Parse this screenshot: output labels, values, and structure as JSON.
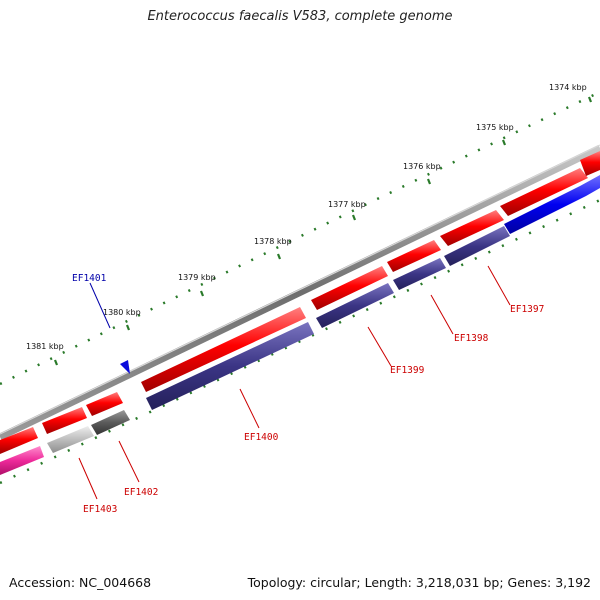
{
  "title": "Enterococcus faecalis V583, complete genome",
  "footer": {
    "accession": "Accession: NC_004668",
    "summary": "Topology: circular; Length: 3,218,031 bp; Genes: 3,192"
  },
  "colors": {
    "tick": "#2a7a2a",
    "backbone": "#7a7a7a",
    "forward_gene": "#e00000",
    "reverse_gene": "#3b3585",
    "highlight_gene": "#0b0bdc",
    "pink_gene": "#ee2a9a",
    "label_red": "#cc0000",
    "label_blue": "#0000aa"
  },
  "kbp_labels": [
    "1374 kbp",
    "1375 kbp",
    "1376 kbp",
    "1377 kbp",
    "1378 kbp",
    "1379 kbp",
    "1380 kbp",
    "1381 kbp"
  ],
  "gene_labels": {
    "ef1401": "EF1401",
    "ef1397": "EF1397",
    "ef1398": "EF1398",
    "ef1399": "EF1399",
    "ef1400": "EF1400",
    "ef1402": "EF1402",
    "ef1403": "EF1403"
  }
}
